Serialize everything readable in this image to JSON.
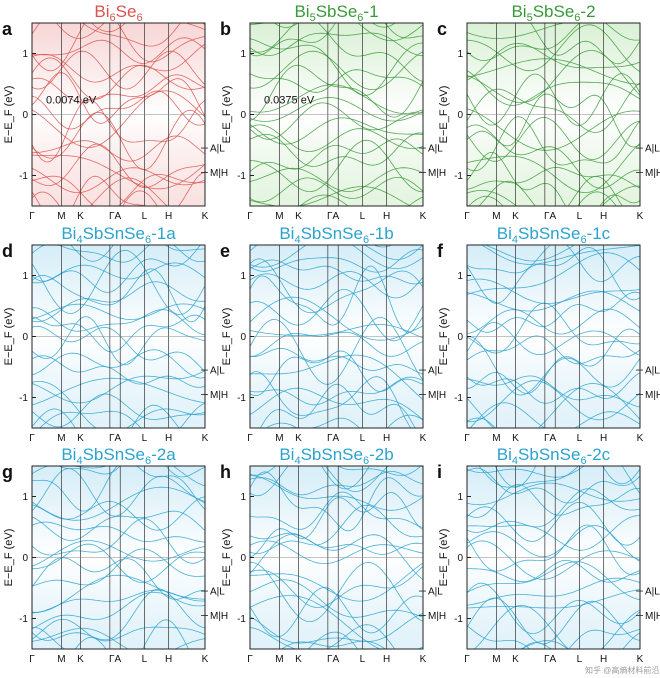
{
  "figure": {
    "watermark": "知乎 @高熵材料前沿",
    "panels": [
      {
        "letter": "a",
        "title": {
          "base": "Bi",
          "sub1": "6",
          "mid": "Se",
          "sub2": "6",
          "suffix": ""
        },
        "color": "#d9534f",
        "fill": "#f7d4d4",
        "gap": "0.0074 eV"
      },
      {
        "letter": "b",
        "title": {
          "base": "Bi",
          "sub1": "5",
          "mid": "SbSe",
          "sub2": "6",
          "suffix": "-1"
        },
        "color": "#3a9a3a",
        "fill": "#d8f0d3",
        "gap": "0.0375 eV"
      },
      {
        "letter": "c",
        "title": {
          "base": "Bi",
          "sub1": "5",
          "mid": "SbSe",
          "sub2": "6",
          "suffix": "-2"
        },
        "color": "#3a9a3a",
        "fill": "#d8f0d3",
        "gap": ""
      },
      {
        "letter": "d",
        "title": {
          "base": "Bi",
          "sub1": "4",
          "mid": "SbSnSe",
          "sub2": "6",
          "suffix": "-1a"
        },
        "color": "#2aa3cf",
        "fill": "#d3ecf7",
        "gap": ""
      },
      {
        "letter": "e",
        "title": {
          "base": "Bi",
          "sub1": "4",
          "mid": "SbSnSe",
          "sub2": "6",
          "suffix": "-1b"
        },
        "color": "#2aa3cf",
        "fill": "#d3ecf7",
        "gap": ""
      },
      {
        "letter": "f",
        "title": {
          "base": "Bi",
          "sub1": "4",
          "mid": "SbSnSe",
          "sub2": "6",
          "suffix": "-1c"
        },
        "color": "#2aa3cf",
        "fill": "#d3ecf7",
        "gap": ""
      },
      {
        "letter": "g",
        "title": {
          "base": "Bi",
          "sub1": "4",
          "mid": "SbSnSe",
          "sub2": "6",
          "suffix": "-2a"
        },
        "color": "#2aa3cf",
        "fill": "#d3ecf7",
        "gap": ""
      },
      {
        "letter": "h",
        "title": {
          "base": "Bi",
          "sub1": "4",
          "mid": "SbSnSe",
          "sub2": "6",
          "suffix": "-2b"
        },
        "color": "#2aa3cf",
        "fill": "#d3ecf7",
        "gap": ""
      },
      {
        "letter": "i",
        "title": {
          "base": "Bi",
          "sub1": "4",
          "mid": "SbSnSe",
          "sub2": "6",
          "suffix": "-2c"
        },
        "color": "#2aa3cf",
        "fill": "#d3ecf7",
        "gap": ""
      }
    ]
  },
  "chart_data": {
    "type": "line",
    "xlabel": "",
    "ylabel": "E−E_F (eV)",
    "ylim": [
      -1.5,
      1.5
    ],
    "y_ticks": [
      "1",
      "0",
      "-1"
    ],
    "k_path_labels": [
      "Γ",
      "M",
      "K",
      "ΓA",
      "L",
      "H",
      "K"
    ],
    "side_annotations": [
      "A|L",
      "M|H"
    ],
    "fermi_level": 0,
    "grid": false
  }
}
